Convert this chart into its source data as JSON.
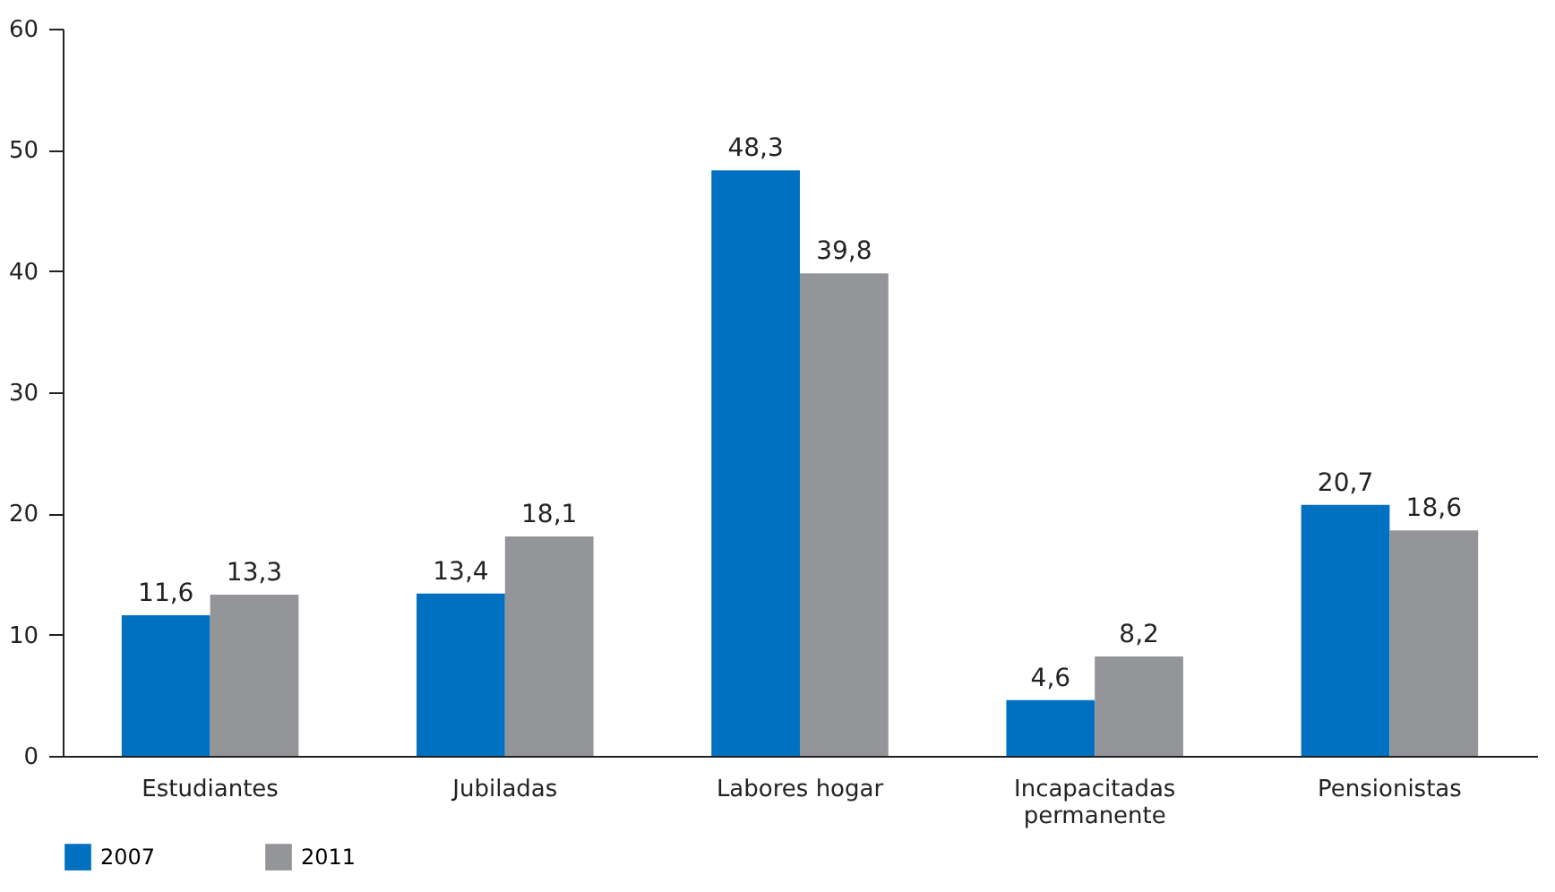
{
  "chart_data": {
    "type": "bar",
    "categories": [
      "Estudiantes",
      "Jubiladas",
      "Labores hogar",
      "Incapacitadas\npermanente",
      "Pensionistas"
    ],
    "series": [
      {
        "name": "2007",
        "color": "#0070c0",
        "values": [
          11.6,
          13.4,
          48.3,
          4.6,
          20.7
        ],
        "value_labels": [
          "11,6",
          "13,4",
          "48,3",
          "4,6",
          "20,7"
        ]
      },
      {
        "name": "2011",
        "color": "#939598",
        "values": [
          13.3,
          18.1,
          39.8,
          8.2,
          18.6
        ],
        "value_labels": [
          "13,3",
          "18,1",
          "39,8",
          "8,2",
          "18,6"
        ]
      }
    ],
    "ylim": [
      0,
      60
    ],
    "yticks": [
      0,
      10,
      20,
      30,
      40,
      50,
      60
    ],
    "legend": "bottom",
    "grid": false
  }
}
